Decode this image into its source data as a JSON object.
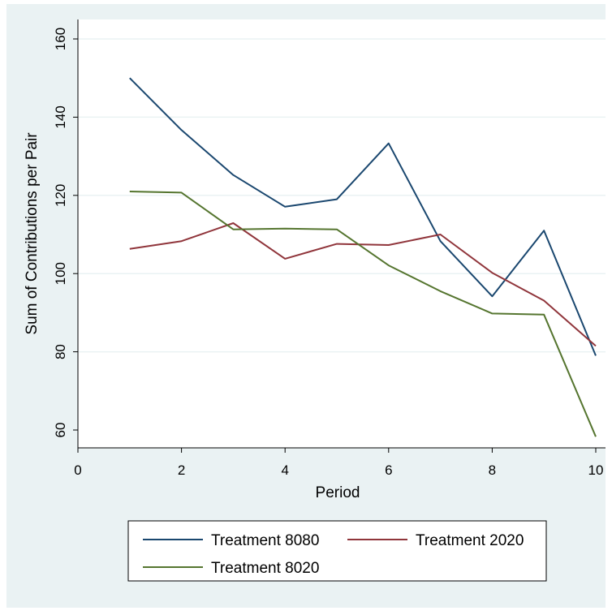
{
  "chart_data": {
    "type": "line",
    "title": "",
    "xlabel": "Period",
    "ylabel": "Sum of Contributions per Pair",
    "xlim": [
      0,
      10
    ],
    "ylim": [
      60,
      160
    ],
    "xticks": [
      0,
      2,
      4,
      6,
      8,
      10
    ],
    "yticks": [
      60,
      80,
      100,
      120,
      140,
      160
    ],
    "grid": "horizontal",
    "legend_position": "bottom",
    "x": [
      1,
      2,
      3,
      4,
      5,
      6,
      7,
      8,
      9,
      10
    ],
    "series": [
      {
        "name": "Treatment 8080",
        "color": "#1a476f",
        "values": [
          150.0,
          136.7,
          125.2,
          117.1,
          119.0,
          133.3,
          108.3,
          94.2,
          111.0,
          79.0
        ]
      },
      {
        "name": "Treatment 2020",
        "color": "#90353b",
        "values": [
          106.3,
          108.3,
          112.9,
          103.8,
          107.6,
          107.3,
          110.0,
          100.2,
          93.1,
          81.5
        ]
      },
      {
        "name": "Treatment 8020",
        "color": "#55752f",
        "values": [
          121.0,
          120.7,
          111.3,
          111.5,
          111.3,
          102.1,
          95.5,
          89.8,
          89.5,
          58.3
        ]
      }
    ]
  }
}
